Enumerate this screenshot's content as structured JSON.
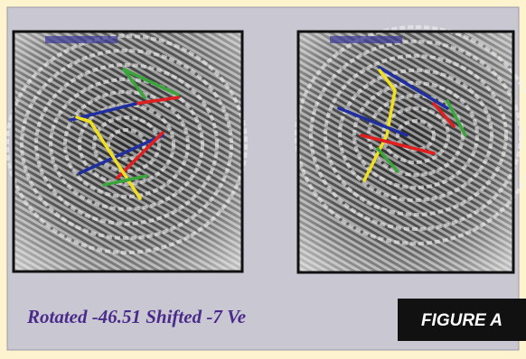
{
  "caption": "Rotated -46.51 Shifted -7 Ve",
  "figure_label": "FIGURE A"
}
